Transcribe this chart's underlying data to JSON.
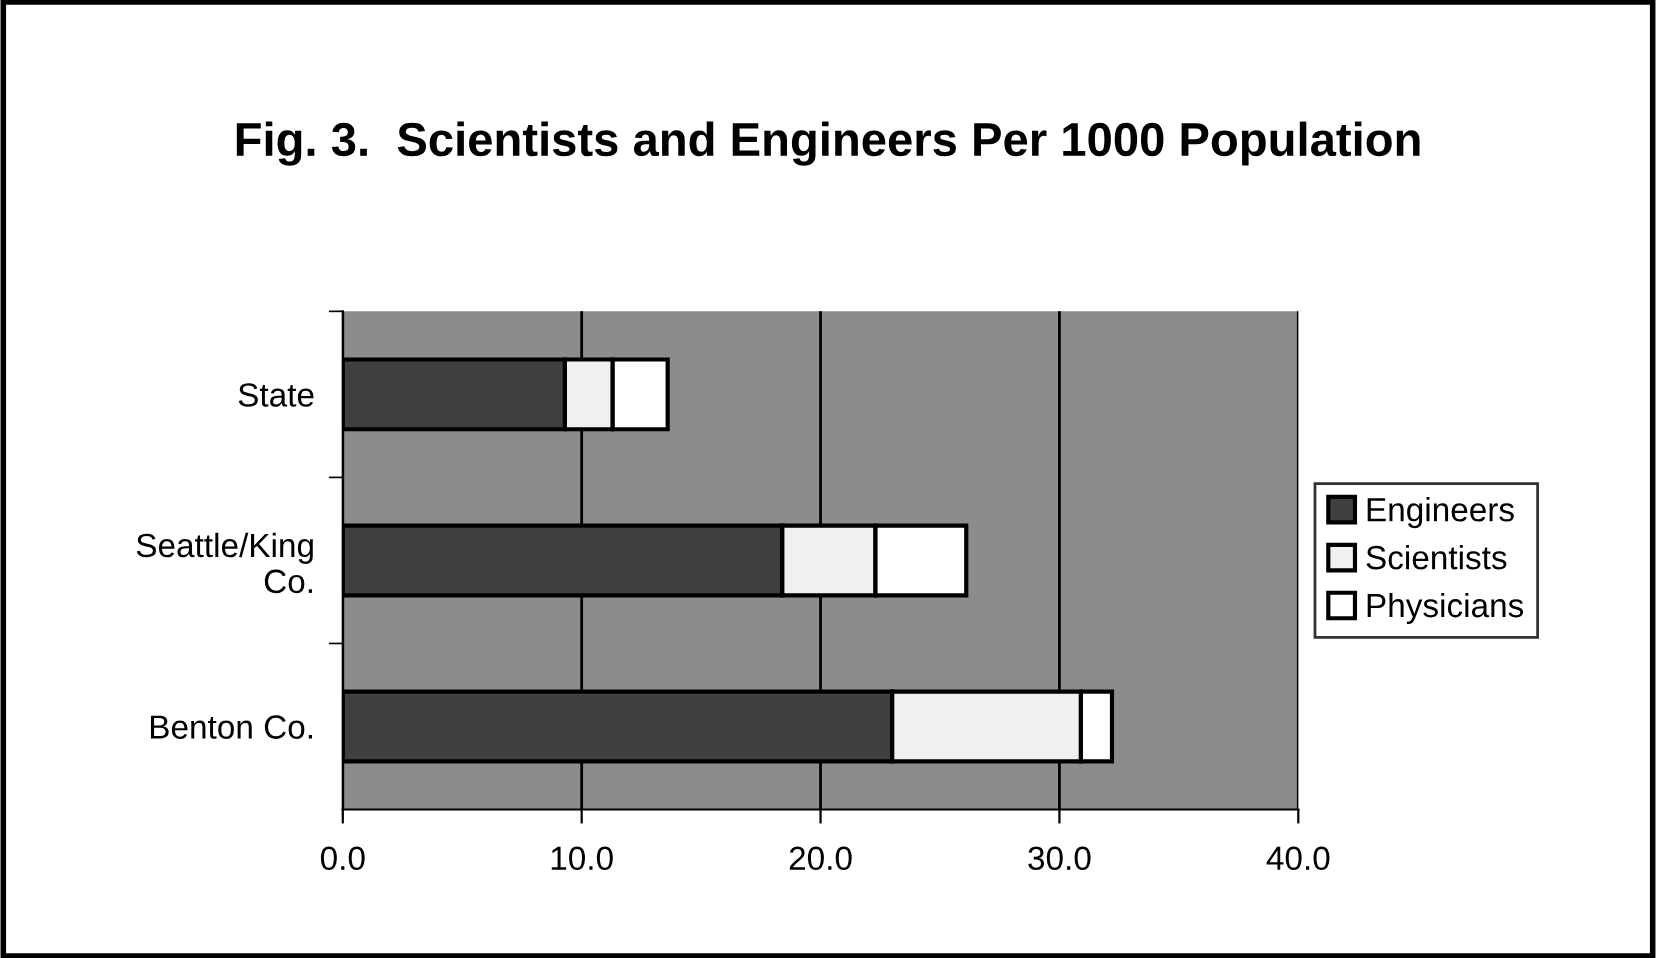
{
  "chart_data": {
    "type": "bar",
    "orientation": "horizontal",
    "stacked": true,
    "title": "Fig. 3.  Scientists and Engineers Per 1000 Population",
    "categories": [
      "State",
      "Seattle/King\nCo.",
      "Benton Co."
    ],
    "series": [
      {
        "name": "Engineers",
        "color": "#404040",
        "values": [
          9.3,
          18.4,
          23.0
        ]
      },
      {
        "name": "Scientists",
        "color": "#f0f0f0",
        "values": [
          2.0,
          3.9,
          7.9
        ]
      },
      {
        "name": "Physicians",
        "color": "#ffffff",
        "values": [
          2.3,
          3.8,
          1.3
        ]
      }
    ],
    "xlim": [
      0,
      40
    ],
    "xticks": [
      {
        "value": 0,
        "label": "0.0"
      },
      {
        "value": 10,
        "label": "10.0"
      },
      {
        "value": 20,
        "label": "20.0"
      },
      {
        "value": 30,
        "label": "30.0"
      },
      {
        "value": 40,
        "label": "40.0"
      }
    ],
    "grid": "x",
    "legend": "right"
  }
}
